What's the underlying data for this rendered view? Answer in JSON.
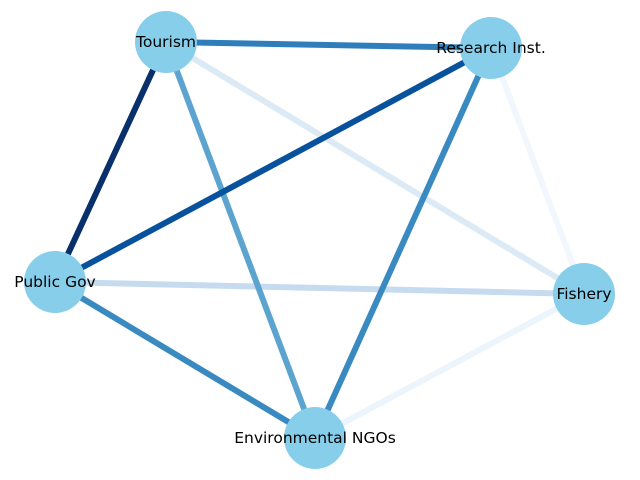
{
  "nodes": [
    {
      "id": "tourism",
      "label": "Tourism"
    },
    {
      "id": "research",
      "label": "Research Inst."
    },
    {
      "id": "public_gov",
      "label": "Public Gov"
    },
    {
      "id": "fishery",
      "label": "Fishery"
    },
    {
      "id": "ngos",
      "label": "Environmental NGOs"
    }
  ],
  "edges": [
    {
      "source": "fishery",
      "target": "research",
      "color": "#f2f7fd"
    },
    {
      "source": "fishery",
      "target": "ngos",
      "color": "#ecf4fc"
    },
    {
      "source": "tourism",
      "target": "fishery",
      "color": "#dceaf6"
    },
    {
      "source": "public_gov",
      "target": "fishery",
      "color": "#c6dbef"
    },
    {
      "source": "tourism",
      "target": "ngos",
      "color": "#5ca4d0"
    },
    {
      "source": "public_gov",
      "target": "ngos",
      "color": "#3a8ac2"
    },
    {
      "source": "research",
      "target": "ngos",
      "color": "#3a8ac2"
    },
    {
      "source": "tourism",
      "target": "research",
      "color": "#2e7ebc"
    },
    {
      "source": "public_gov",
      "target": "research",
      "color": "#08519c"
    },
    {
      "source": "tourism",
      "target": "public_gov",
      "color": "#08306b"
    }
  ],
  "node_color": "#87ceeb"
}
